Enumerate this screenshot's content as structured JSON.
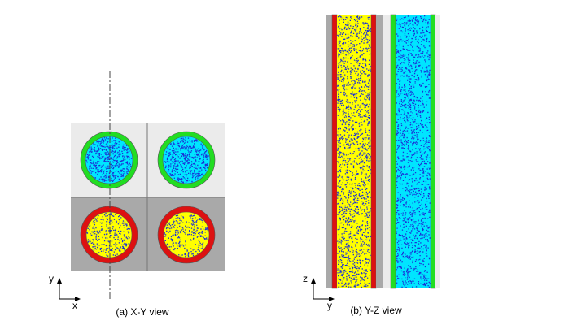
{
  "panels": [
    {
      "caption": "(a) X-Y view",
      "axes": {
        "vertical": "y",
        "horizontal": "x"
      }
    },
    {
      "caption": "(b) Y-Z view",
      "axes": {
        "vertical": "z",
        "horizontal": "y"
      }
    }
  ]
}
